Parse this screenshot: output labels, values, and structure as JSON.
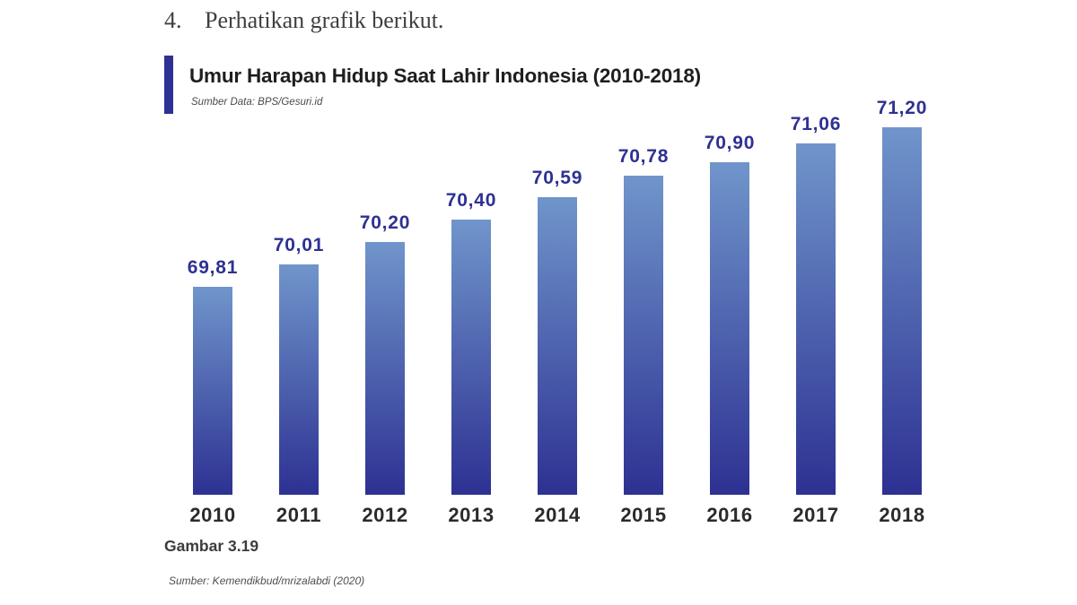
{
  "question": {
    "number": "4.",
    "text": "Perhatikan grafik berikut."
  },
  "figure": {
    "caption": "Gambar 3.19",
    "source_credit": "Sumber: Kemendikbud/mrizalabdi (2020)"
  },
  "chart_data": {
    "type": "bar",
    "title": "Umur Harapan Hidup Saat Lahir Indonesia (2010-2018)",
    "subtitle": "Sumber Data: BPS/Gesuri.id",
    "categories": [
      "2010",
      "2011",
      "2012",
      "2013",
      "2014",
      "2015",
      "2016",
      "2017",
      "2018"
    ],
    "values": [
      69.81,
      70.01,
      70.2,
      70.4,
      70.59,
      70.78,
      70.9,
      71.06,
      71.2
    ],
    "value_labels": [
      "69,81",
      "70,01",
      "70,20",
      "70,40",
      "70,59",
      "70,78",
      "70,90",
      "71,06",
      "71,20"
    ],
    "xlabel": "",
    "ylabel": "",
    "ylim": [
      68,
      71.6
    ],
    "grid": false,
    "legend": false,
    "bar_color_top": "#7095cb",
    "bar_color_bottom": "#2d3192",
    "value_label_color": "#2e3192"
  },
  "colors": {
    "accent": "#2e3192",
    "title_text": "#1e1e1e",
    "year_label": "#2b2b2b",
    "body_text": "#3f3f3f"
  }
}
